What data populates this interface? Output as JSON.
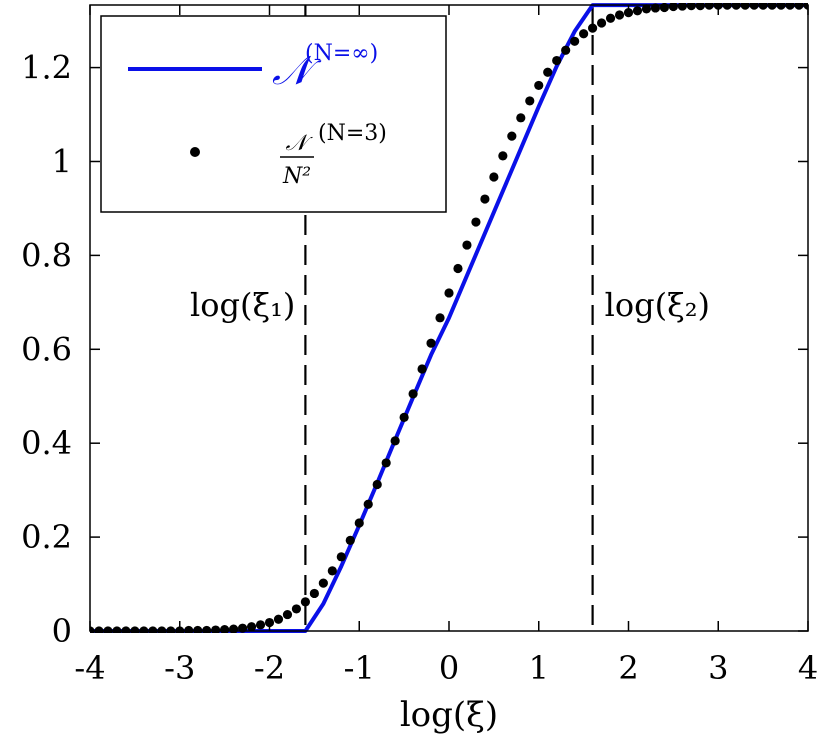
{
  "chart_data": {
    "type": "line",
    "xlabel": "log(ξ)",
    "ylabel": "",
    "xlim": [
      -4,
      4
    ],
    "ylim": [
      0,
      1.3333
    ],
    "x_ticks": [
      -4,
      -3,
      -2,
      -1,
      0,
      1,
      2,
      3,
      4
    ],
    "x_tick_labels": [
      "-4",
      "-3",
      "-2",
      "-1",
      "0",
      "1",
      "2",
      "3",
      "4"
    ],
    "y_ticks": [
      0,
      0.2,
      0.4,
      0.6,
      0.8,
      1.0,
      1.2
    ],
    "y_tick_labels": [
      "0",
      "0.2",
      "0.4",
      "0.6",
      "0.8",
      "1",
      "1.2"
    ],
    "grid": false,
    "legend_position": "top-left",
    "colors": {
      "line": "#0a10e8",
      "dots": "#000000",
      "dashed": "#000000"
    },
    "series": [
      {
        "name": "N(N=∞)",
        "legend_main": "𝒩",
        "legend_sup": "(N=∞)",
        "style": "solid-line",
        "x": [
          -4.0,
          -1.6,
          -1.4,
          -1.2,
          -1.0,
          -0.8,
          -0.6,
          -0.4,
          -0.2,
          0.0,
          0.2,
          0.4,
          0.6,
          0.8,
          1.0,
          1.2,
          1.4,
          1.6,
          4.0
        ],
        "y": [
          0.0,
          0.0,
          0.058,
          0.138,
          0.225,
          0.315,
          0.407,
          0.498,
          0.588,
          0.667,
          0.757,
          0.847,
          0.937,
          1.027,
          1.117,
          1.203,
          1.277,
          1.333,
          1.333
        ]
      },
      {
        "name": "N/N^2 (N=3)",
        "legend_num": "𝒩",
        "legend_den": "N²",
        "legend_sup": "(N=3)",
        "style": "dots",
        "x": [
          -4.0,
          -3.9,
          -3.8,
          -3.7,
          -3.6,
          -3.5,
          -3.4,
          -3.3,
          -3.2,
          -3.1,
          -3.0,
          -2.9,
          -2.8,
          -2.7,
          -2.6,
          -2.5,
          -2.4,
          -2.3,
          -2.2,
          -2.1,
          -2.0,
          -1.9,
          -1.8,
          -1.7,
          -1.6,
          -1.5,
          -1.4,
          -1.3,
          -1.2,
          -1.1,
          -1.0,
          -0.9,
          -0.8,
          -0.7,
          -0.6,
          -0.5,
          -0.4,
          -0.3,
          -0.2,
          -0.1,
          0.0,
          0.1,
          0.2,
          0.3,
          0.4,
          0.5,
          0.6,
          0.7,
          0.8,
          0.9,
          1.0,
          1.1,
          1.2,
          1.3,
          1.4,
          1.5,
          1.6,
          1.7,
          1.8,
          1.9,
          2.0,
          2.1,
          2.2,
          2.3,
          2.4,
          2.5,
          2.6,
          2.7,
          2.8,
          2.9,
          3.0,
          3.1,
          3.2,
          3.3,
          3.4,
          3.5,
          3.6,
          3.7,
          3.8,
          3.9,
          4.0
        ],
        "y": [
          0.0,
          0.0,
          0.0,
          0.0,
          0.0,
          0.0,
          0.0,
          0.0,
          0.0,
          0.0,
          0.0,
          0.001,
          0.001,
          0.001,
          0.002,
          0.003,
          0.004,
          0.006,
          0.009,
          0.013,
          0.018,
          0.025,
          0.035,
          0.047,
          0.062,
          0.08,
          0.102,
          0.128,
          0.158,
          0.193,
          0.23,
          0.27,
          0.312,
          0.358,
          0.405,
          0.455,
          0.505,
          0.558,
          0.613,
          0.667,
          0.72,
          0.772,
          0.822,
          0.871,
          0.92,
          0.967,
          1.012,
          1.054,
          1.093,
          1.129,
          1.162,
          1.19,
          1.215,
          1.237,
          1.256,
          1.272,
          1.284,
          1.295,
          1.305,
          1.312,
          1.317,
          1.321,
          1.325,
          1.327,
          1.328,
          1.33,
          1.331,
          1.332,
          1.332,
          1.333,
          1.333,
          1.333,
          1.333,
          1.333,
          1.333,
          1.333,
          1.333,
          1.333,
          1.333,
          1.333,
          1.333
        ]
      }
    ],
    "vlines": [
      {
        "x": -1.6,
        "style": "dashed",
        "label": "log(ξ₁)",
        "label_side": "left"
      },
      {
        "x": 1.6,
        "style": "dashed",
        "label": "log(ξ₂)",
        "label_side": "right"
      }
    ]
  }
}
